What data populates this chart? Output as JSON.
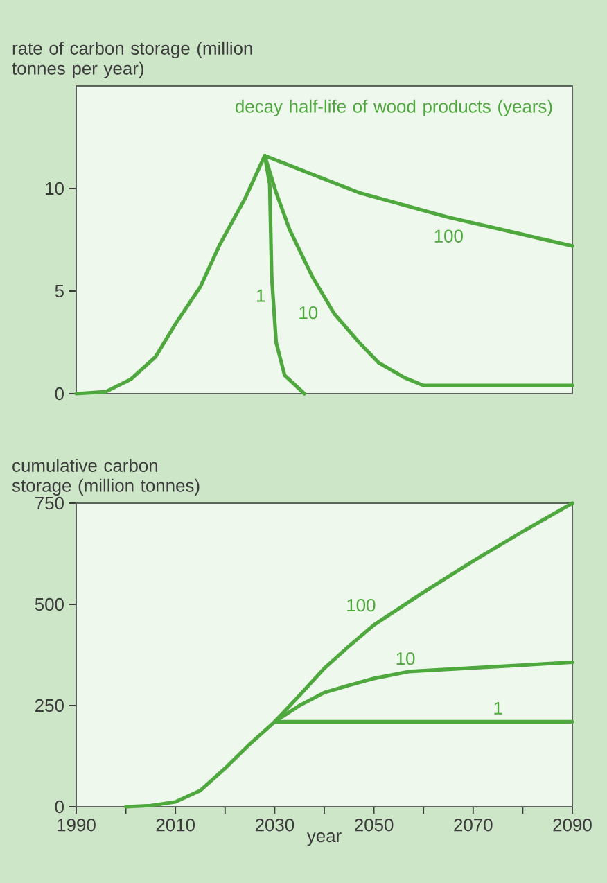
{
  "chart_data": [
    {
      "type": "line",
      "ylabel": "rate of carbon storage (million tonnes per year)",
      "legend_title": "decay half-life of wood products (years)",
      "xlim": [
        1990,
        2090
      ],
      "ylim": [
        0,
        15
      ],
      "yticks": [
        0,
        5,
        10
      ],
      "tick_labels": "y",
      "series": [
        {
          "name": "100",
          "color": "#4ea83e",
          "x": [
            1990,
            1996,
            2001,
            2006,
            2010,
            2015,
            2019,
            2024,
            2028,
            2047,
            2065,
            2090
          ],
          "values": [
            0,
            0.1,
            0.7,
            1.8,
            3.4,
            5.2,
            7.3,
            9.5,
            11.6,
            9.8,
            8.6,
            7.2
          ]
        },
        {
          "name": "1",
          "color": "#4ea83e",
          "x": [
            2028,
            2029,
            2029.4,
            2030.3,
            2032,
            2036
          ],
          "values": [
            11.6,
            10.2,
            5.7,
            2.5,
            0.9,
            0
          ]
        },
        {
          "name": "10",
          "color": "#4ea83e",
          "x": [
            2028,
            2030.3,
            2033,
            2037.6,
            2042,
            2047,
            2051,
            2056,
            2060,
            2070,
            2090
          ],
          "values": [
            11.6,
            9.8,
            8.0,
            5.7,
            3.9,
            2.5,
            1.5,
            0.8,
            0.4,
            0.4,
            0.4
          ]
        }
      ]
    },
    {
      "type": "line",
      "ylabel": "cumulative carbon storage (million tonnes)",
      "xlabel": "year",
      "xlim": [
        1990,
        2090
      ],
      "ylim": [
        0,
        750
      ],
      "yticks": [
        0,
        250,
        500,
        750
      ],
      "xticks": [
        1990,
        {
          "value": 2000,
          "label": null
        },
        2010,
        {
          "value": 2020,
          "label": null
        },
        2030,
        {
          "value": 2040,
          "label": null
        },
        2050,
        {
          "value": 2060,
          "label": null
        },
        2070,
        {
          "value": 2080,
          "label": null
        },
        2090
      ],
      "series": [
        {
          "name": "100",
          "color": "#4ea83e",
          "x": [
            2000,
            2005,
            2010,
            2015,
            2020,
            2025,
            2030,
            2035,
            2040,
            2045,
            2050,
            2060,
            2070,
            2080,
            2090
          ],
          "values": [
            0,
            3,
            12,
            40,
            95,
            155,
            210,
            275,
            342,
            397,
            449,
            530,
            607,
            680,
            750
          ]
        },
        {
          "name": "10",
          "color": "#4ea83e",
          "x": [
            2030,
            2035,
            2040,
            2045,
            2050,
            2057,
            2070,
            2090
          ],
          "values": [
            210,
            250,
            282,
            300,
            317,
            334,
            343,
            357
          ]
        },
        {
          "name": "1",
          "color": "#4ea83e",
          "x": [
            2030,
            2090
          ],
          "values": [
            210,
            210
          ]
        }
      ]
    }
  ]
}
